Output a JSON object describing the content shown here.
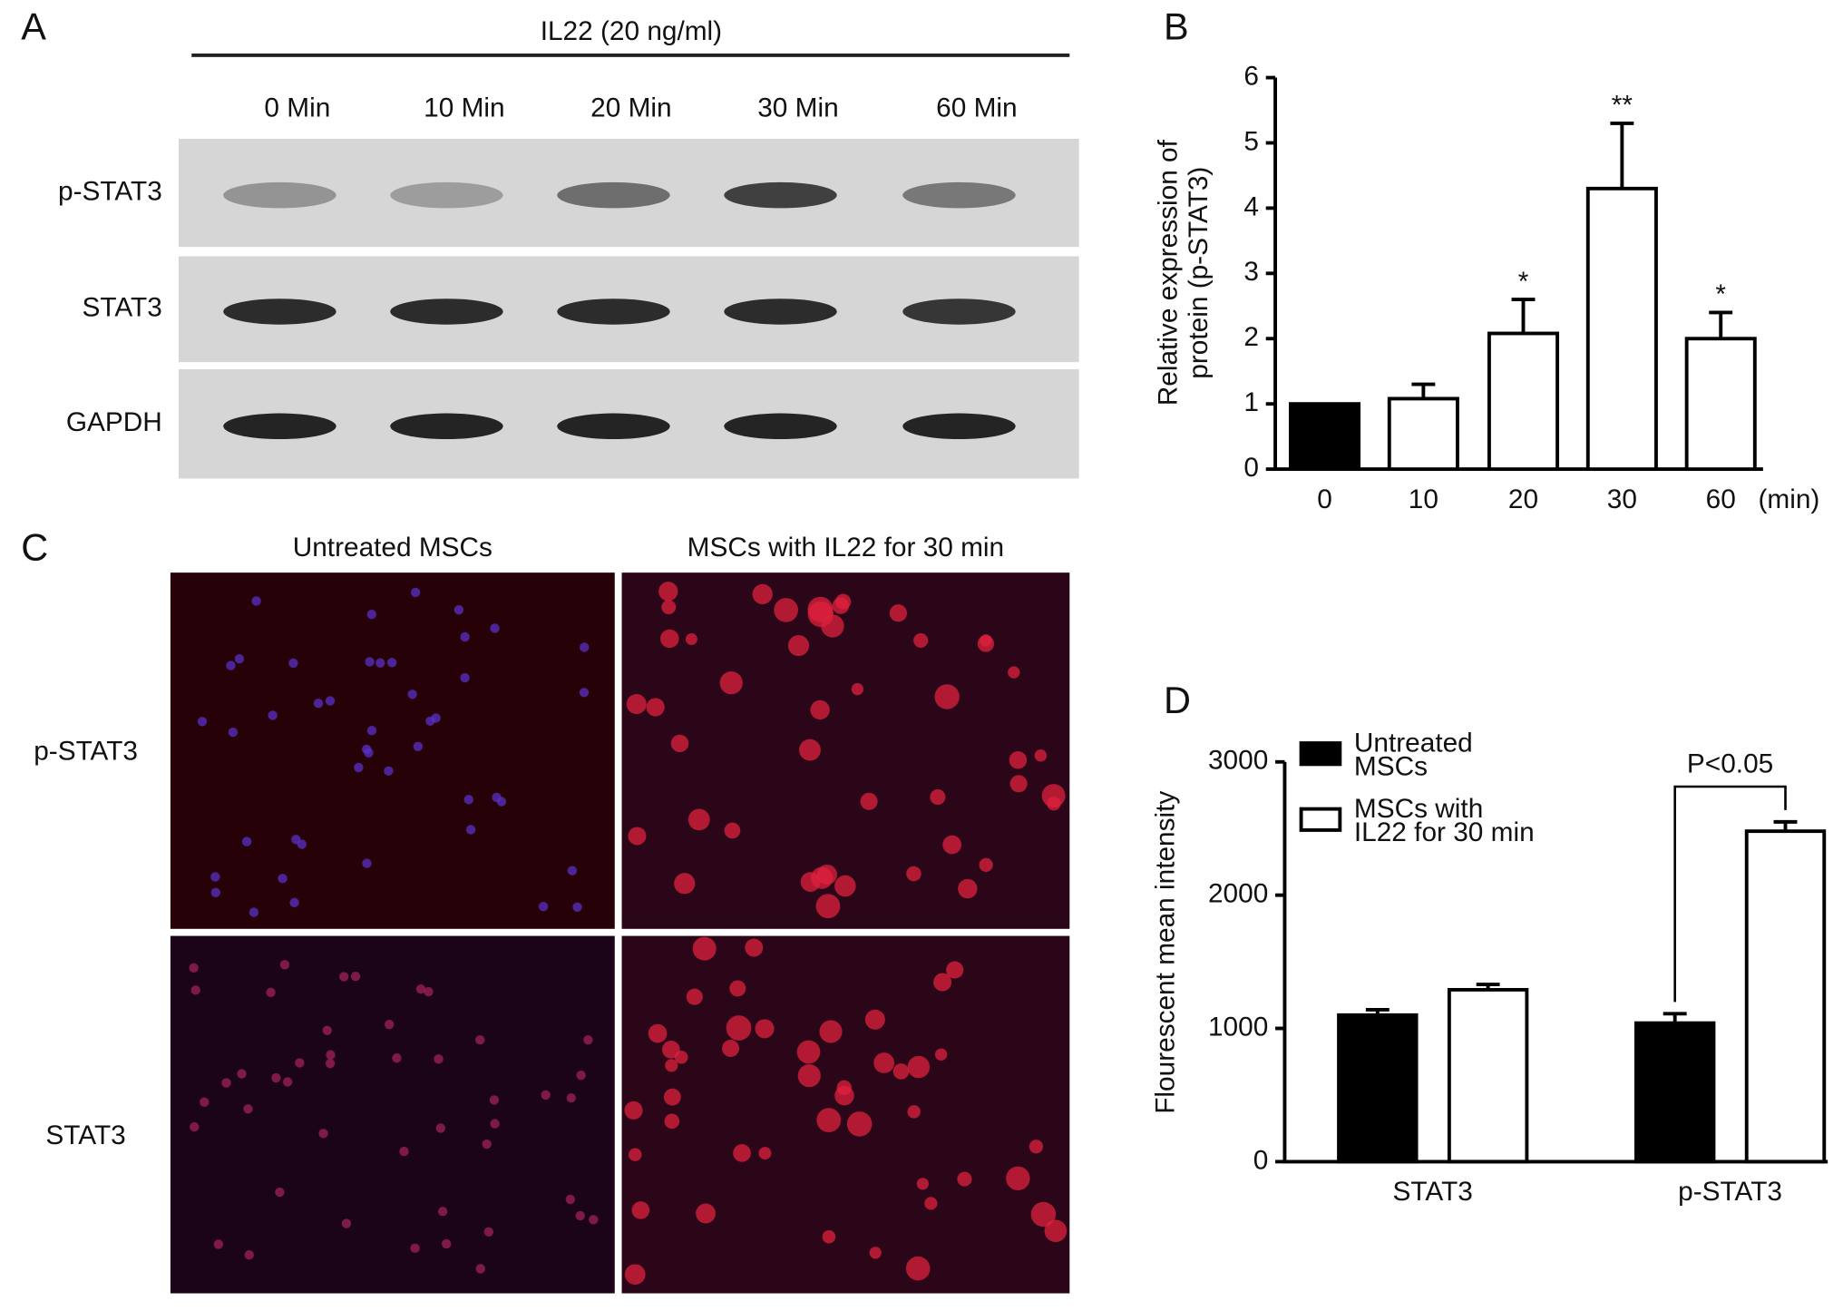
{
  "panel_labels": [
    "A",
    "B",
    "C",
    "D"
  ],
  "blot": {
    "treatment": "IL22 (20 ng/ml)",
    "lanes": [
      "0 Min",
      "10 Min",
      "20 Min",
      "30 Min",
      "60 Min"
    ],
    "rows": [
      "p-STAT3",
      "STAT3",
      "GAPDH"
    ]
  },
  "microscopy": {
    "columns": [
      "Untreated MSCs",
      "MSCs with IL22 for 30 min"
    ],
    "rows": [
      "p-STAT3",
      "STAT3"
    ]
  },
  "chart_data": [
    {
      "type": "bar",
      "y_label": "Relative expression of protein (p-STAT3)",
      "x_unit": "(min)",
      "categories": [
        "0",
        "10",
        "20",
        "30",
        "60"
      ],
      "values": [
        1,
        1.08,
        2.08,
        4.3,
        2.0
      ],
      "errors": [
        0,
        0.22,
        0.52,
        1.0,
        0.4
      ],
      "colors": [
        "#000000",
        "#ffffff",
        "#ffffff",
        "#ffffff",
        "#ffffff"
      ],
      "significance": [
        null,
        null,
        "*",
        "**",
        "*"
      ],
      "ylim": [
        0,
        6
      ],
      "yticks": [
        0,
        1,
        2,
        3,
        4,
        5,
        6
      ]
    },
    {
      "type": "bar",
      "y_label": "Flourescent mean intensity",
      "categories": [
        "STAT3",
        "p-STAT3"
      ],
      "series": [
        {
          "name": "Untreated MSCs",
          "color": "#000000",
          "values": [
            1100,
            1040
          ],
          "errors": [
            40,
            70
          ]
        },
        {
          "name": "MSCs with IL22 for 30 min",
          "color": "#ffffff",
          "values": [
            1290,
            2480
          ],
          "errors": [
            40,
            70
          ]
        }
      ],
      "bracket_label": "P<0.05",
      "ylim": [
        0,
        3000
      ],
      "yticks": [
        0,
        1000,
        2000,
        3000
      ]
    }
  ]
}
